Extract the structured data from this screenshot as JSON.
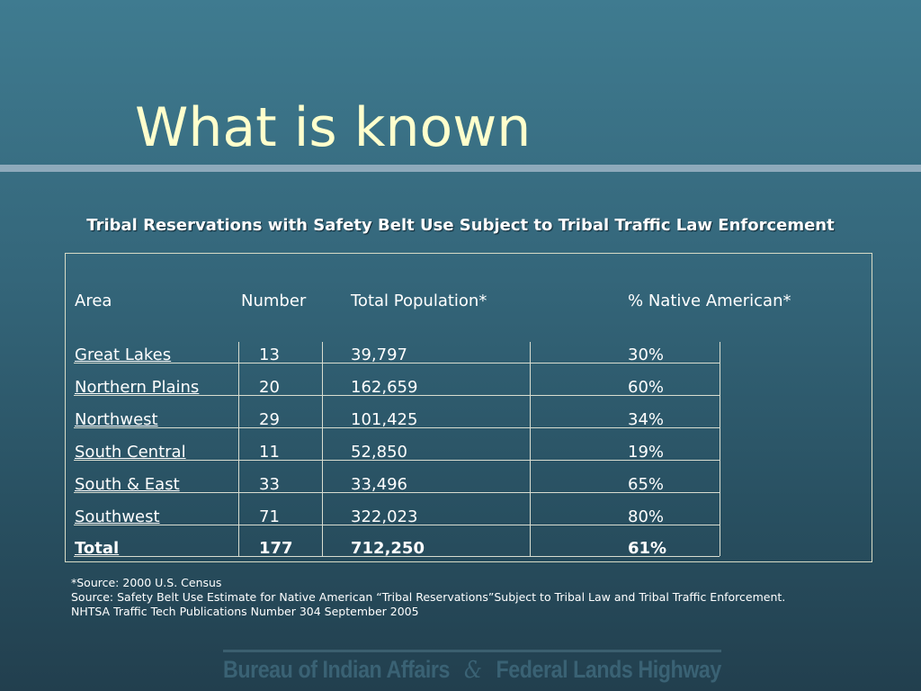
{
  "title": "What is known",
  "subtitle": "Tribal Reservations with Safety Belt Use Subject to Tribal Traffic Law Enforcement",
  "table": {
    "headers": [
      "Area",
      "Number",
      "Total Population*",
      "% Native American*"
    ],
    "rows": [
      [
        "Great Lakes",
        "13",
        "39,797",
        "30%"
      ],
      [
        "Northern Plains",
        "20",
        "162,659",
        "60%"
      ],
      [
        "Northwest",
        "29",
        "101,425",
        "34%"
      ],
      [
        "South Central",
        "11",
        "52,850",
        "19%"
      ],
      [
        "South & East",
        "33",
        "33,496",
        "65%"
      ],
      [
        "Southwest",
        "71",
        "322,023",
        "80%"
      ]
    ],
    "total": [
      "Total",
      "177",
      "712,250",
      "61%"
    ]
  },
  "sources": [
    "*Source: 2000 U.S. Census",
    "Source: Safety Belt Use Estimate for Native American “Tribal Reservations”Subject to Tribal Law and Tribal Traffic Enforcement.",
    "NHTSA Traffic Tech Publications Number 304 September 2005"
  ],
  "footer": {
    "left": "Bureau of Indian Affairs",
    "amp": "&",
    "right": "Federal Lands Highway"
  }
}
